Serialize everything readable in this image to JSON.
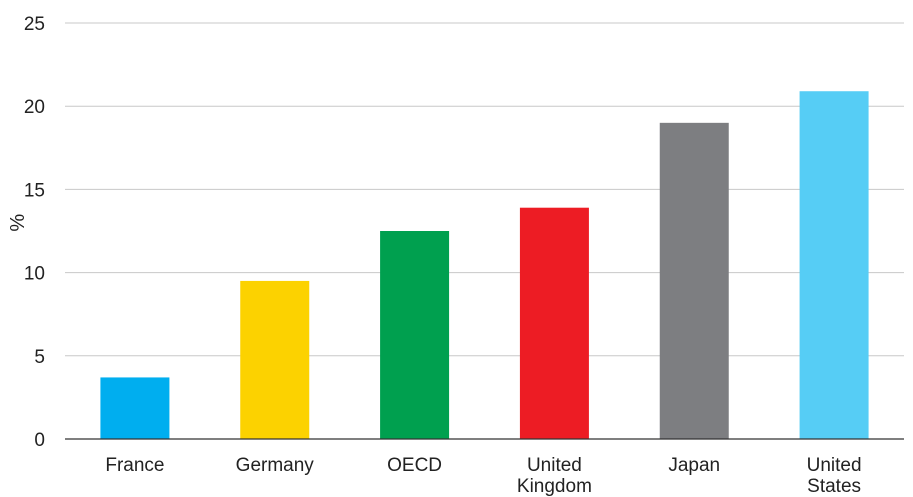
{
  "chart_data": {
    "type": "bar",
    "categories": [
      [
        "France"
      ],
      [
        "Germany"
      ],
      [
        "OECD"
      ],
      [
        "United",
        "Kingdom"
      ],
      [
        "Japan"
      ],
      [
        "United",
        "States"
      ]
    ],
    "values": [
      3.7,
      9.5,
      12.5,
      13.9,
      19.0,
      20.9
    ],
    "colors": [
      "#00aeef",
      "#fcd200",
      "#00a04f",
      "#ed1c24",
      "#7d7e81",
      "#56cdf5"
    ],
    "ylabel": "%",
    "ylim": [
      0,
      25
    ],
    "yticks": [
      0,
      5,
      10,
      15,
      20,
      25
    ],
    "grid": true
  }
}
